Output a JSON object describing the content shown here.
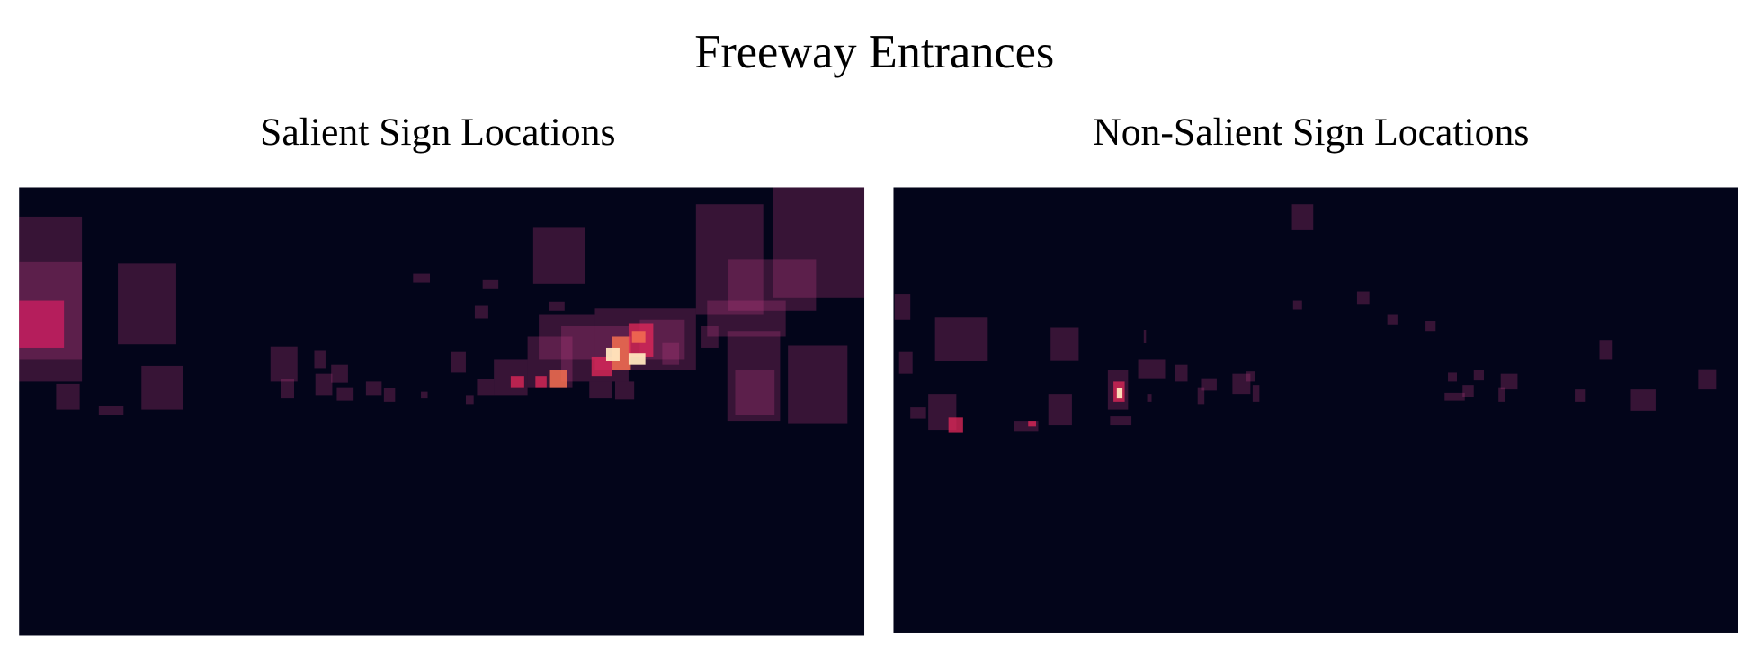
{
  "header": {
    "title": "Freeway Entrances"
  },
  "panels": [
    {
      "title": "Salient Sign Locations"
    },
    {
      "title": "Non-Salient Sign Locations"
    }
  ]
}
